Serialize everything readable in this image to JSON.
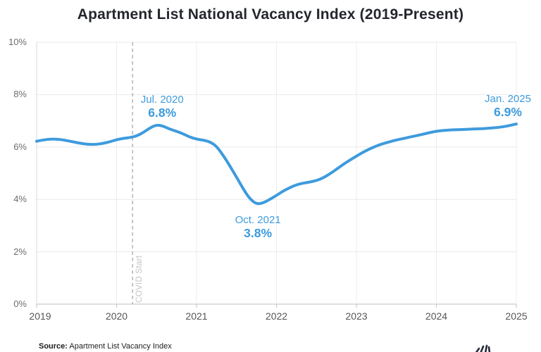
{
  "title": "Apartment List National Vacancy Index (2019-Present)",
  "source": {
    "label": "Source:",
    "text": "Apartment List Vacancy Index"
  },
  "footer_icon": "apartment-list-logo-mark (partially cut off at bottom edge)",
  "colors": {
    "line": "#3e9bdd",
    "annotation": "#3e9bdd",
    "grid": "#e9e9e9",
    "axis": "#c9c9c9",
    "dashed_line": "#b5b5b5",
    "covid_text": "#c3c3c3",
    "title_text": "#23262c",
    "tick_text": "#6d6d6d"
  },
  "chart_data": {
    "type": "line",
    "title": "Apartment List National Vacancy Index (2019-Present)",
    "xlabel": "",
    "ylabel": "",
    "xlim": [
      2019,
      2025
    ],
    "ylim": [
      0,
      10
    ],
    "grid": true,
    "x_ticks": [
      "2019",
      "2020",
      "2021",
      "2022",
      "2023",
      "2024",
      "2025"
    ],
    "y_ticks": [
      "0%",
      "2%",
      "4%",
      "6%",
      "8%",
      "10%"
    ],
    "y_tick_values": [
      0,
      2,
      4,
      6,
      8,
      10
    ],
    "vline": {
      "x": 2020.2,
      "label": "COVID Start",
      "style": "dashed"
    },
    "annotations": [
      {
        "date": "Jul. 2020",
        "value": "6.8%",
        "x": 2020.5,
        "y": 6.85,
        "placement": "above"
      },
      {
        "date": "Oct. 2021",
        "value": "3.8%",
        "x": 2021.75,
        "y": 3.82,
        "placement": "below"
      },
      {
        "date": "Jan. 2025",
        "value": "6.9%",
        "x": 2025.0,
        "y": 6.88,
        "placement": "above"
      }
    ],
    "series": [
      {
        "name": "National Vacancy Index",
        "points": [
          [
            2019.0,
            6.22
          ],
          [
            2019.083,
            6.27
          ],
          [
            2019.167,
            6.3
          ],
          [
            2019.25,
            6.3
          ],
          [
            2019.333,
            6.27
          ],
          [
            2019.417,
            6.22
          ],
          [
            2019.5,
            6.17
          ],
          [
            2019.583,
            6.12
          ],
          [
            2019.667,
            6.1
          ],
          [
            2019.75,
            6.1
          ],
          [
            2019.833,
            6.14
          ],
          [
            2019.917,
            6.2
          ],
          [
            2020.0,
            6.28
          ],
          [
            2020.083,
            6.33
          ],
          [
            2020.167,
            6.36
          ],
          [
            2020.25,
            6.42
          ],
          [
            2020.333,
            6.55
          ],
          [
            2020.417,
            6.73
          ],
          [
            2020.5,
            6.85
          ],
          [
            2020.583,
            6.8
          ],
          [
            2020.667,
            6.68
          ],
          [
            2020.75,
            6.6
          ],
          [
            2020.833,
            6.5
          ],
          [
            2020.917,
            6.38
          ],
          [
            2021.0,
            6.3
          ],
          [
            2021.083,
            6.26
          ],
          [
            2021.167,
            6.2
          ],
          [
            2021.25,
            6.03
          ],
          [
            2021.333,
            5.68
          ],
          [
            2021.417,
            5.28
          ],
          [
            2021.5,
            4.85
          ],
          [
            2021.583,
            4.4
          ],
          [
            2021.667,
            4.02
          ],
          [
            2021.75,
            3.82
          ],
          [
            2021.833,
            3.86
          ],
          [
            2021.917,
            4.0
          ],
          [
            2022.0,
            4.15
          ],
          [
            2022.083,
            4.32
          ],
          [
            2022.167,
            4.45
          ],
          [
            2022.25,
            4.56
          ],
          [
            2022.333,
            4.62
          ],
          [
            2022.417,
            4.66
          ],
          [
            2022.5,
            4.72
          ],
          [
            2022.583,
            4.82
          ],
          [
            2022.667,
            4.97
          ],
          [
            2022.75,
            5.15
          ],
          [
            2022.833,
            5.33
          ],
          [
            2022.917,
            5.5
          ],
          [
            2023.0,
            5.65
          ],
          [
            2023.083,
            5.8
          ],
          [
            2023.167,
            5.93
          ],
          [
            2023.25,
            6.04
          ],
          [
            2023.333,
            6.13
          ],
          [
            2023.417,
            6.2
          ],
          [
            2023.5,
            6.27
          ],
          [
            2023.583,
            6.32
          ],
          [
            2023.667,
            6.38
          ],
          [
            2023.75,
            6.43
          ],
          [
            2023.833,
            6.49
          ],
          [
            2023.917,
            6.55
          ],
          [
            2024.0,
            6.6
          ],
          [
            2024.083,
            6.63
          ],
          [
            2024.167,
            6.65
          ],
          [
            2024.25,
            6.66
          ],
          [
            2024.333,
            6.67
          ],
          [
            2024.417,
            6.68
          ],
          [
            2024.5,
            6.69
          ],
          [
            2024.583,
            6.7
          ],
          [
            2024.667,
            6.72
          ],
          [
            2024.75,
            6.74
          ],
          [
            2024.833,
            6.77
          ],
          [
            2024.917,
            6.82
          ],
          [
            2025.0,
            6.88
          ]
        ]
      }
    ]
  }
}
